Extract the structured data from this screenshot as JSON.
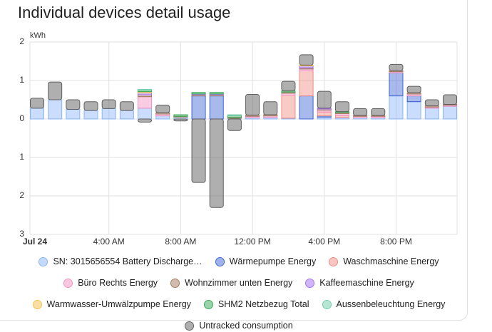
{
  "chart_data": {
    "type": "bar",
    "stacked": true,
    "title": "Individual devices detail usage",
    "y_label": "kWh",
    "categories": [
      "Jul 24",
      null,
      null,
      null,
      "4:00 AM",
      null,
      null,
      null,
      "8:00 AM",
      null,
      null,
      null,
      "12:00 PM",
      null,
      null,
      null,
      "4:00 PM",
      null,
      null,
      null,
      "8:00 PM",
      null,
      null,
      null
    ],
    "ylim": [
      -3,
      2
    ],
    "yticks": [
      2,
      1,
      0,
      {
        "value": -1,
        "label": "1"
      },
      {
        "value": -2,
        "label": "2"
      },
      {
        "value": -3,
        "label": "3"
      }
    ],
    "grid": true,
    "series": [
      {
        "name": "SN: 3015656554 Battery Discharge…",
        "color": "#8ab4f8",
        "values": [
          0.28,
          0.5,
          0.25,
          0.22,
          0.27,
          0.22,
          0.28,
          0.08,
          0.05,
          0,
          0,
          0.02,
          0.03,
          0.04,
          0.02,
          0,
          0.05,
          0.04,
          0.03,
          0.03,
          0.6,
          0.45,
          0.28,
          0.33
        ]
      },
      {
        "name": "Wärmepumpe Energy",
        "color": "#3d63d2",
        "values": [
          0,
          0,
          0,
          0,
          0,
          0,
          0,
          0,
          0,
          0.6,
          0.6,
          0,
          0,
          0,
          0,
          0.6,
          0.03,
          0,
          0,
          0,
          0.6,
          0.15,
          0,
          0
        ]
      },
      {
        "name": "Waschmaschine Energy",
        "color": "#f28b82",
        "values": [
          0,
          0,
          0,
          0,
          0,
          0,
          0,
          0,
          0,
          0,
          0,
          0,
          0,
          0,
          0.6,
          0.65,
          0.1,
          0.05,
          0,
          0,
          0,
          0,
          0,
          0
        ]
      },
      {
        "name": "Büro Rechts Energy",
        "color": "#f48fc0",
        "values": [
          0,
          0,
          0,
          0,
          0,
          0,
          0.3,
          0.05,
          0,
          0,
          0,
          0,
          0.04,
          0.04,
          0.05,
          0.05,
          0.05,
          0.05,
          0.04,
          0.04,
          0.03,
          0.05,
          0.03,
          0.03
        ]
      },
      {
        "name": "Wohnzimmer unten Energy",
        "color": "#a1775a",
        "values": [
          0,
          0,
          0,
          0,
          0,
          0,
          0.05,
          0.03,
          0.02,
          0.03,
          0.03,
          0.02,
          0.03,
          0.03,
          0.03,
          0.03,
          0.03,
          0.03,
          0.02,
          0.02,
          0.03,
          0.03,
          0.03,
          0.02
        ]
      },
      {
        "name": "Kaffeemaschine Energy",
        "color": "#a66cf0",
        "values": [
          0,
          0,
          0,
          0,
          0,
          0,
          0.05,
          0,
          0,
          0.02,
          0.02,
          0,
          0,
          0,
          0,
          0.05,
          0.02,
          0,
          0,
          0,
          0,
          0,
          0,
          0
        ]
      },
      {
        "name": "Warmwasser-Umwälzpumpe Energy",
        "color": "#f5c04a",
        "values": [
          0,
          0,
          0,
          0,
          0,
          0,
          0.03,
          0,
          0,
          0,
          0,
          0,
          0,
          0,
          0,
          0.02,
          0,
          0,
          0,
          0,
          0,
          0,
          0,
          0
        ]
      },
      {
        "name": "SHM2 Netzbezug Total",
        "color": "#34a853",
        "values": [
          0,
          0,
          0,
          0,
          0,
          0,
          0.04,
          0,
          0.04,
          0.04,
          0.04,
          0.05,
          0,
          0,
          0.03,
          0,
          0,
          0.02,
          0,
          0,
          0,
          0,
          0,
          0
        ]
      },
      {
        "name": "Aussenbeleuchtung Energy",
        "color": "#6fcba9",
        "values": [
          0,
          0,
          0,
          0,
          0,
          0,
          0.02,
          0,
          0,
          0,
          0,
          0.02,
          0,
          0,
          0,
          0,
          0,
          0,
          0,
          0,
          0,
          0,
          0,
          0
        ]
      },
      {
        "name": "Untracked consumption",
        "color": "#5f5f5f",
        "values": [
          0.26,
          0.46,
          0.25,
          0.23,
          0.23,
          0.23,
          -0.08,
          0.2,
          -0.05,
          -1.65,
          -2.3,
          -0.3,
          0.54,
          0.34,
          0.25,
          0.27,
          0.44,
          0.26,
          0.18,
          0.18,
          0.16,
          0.17,
          0.16,
          0.25
        ]
      }
    ]
  }
}
